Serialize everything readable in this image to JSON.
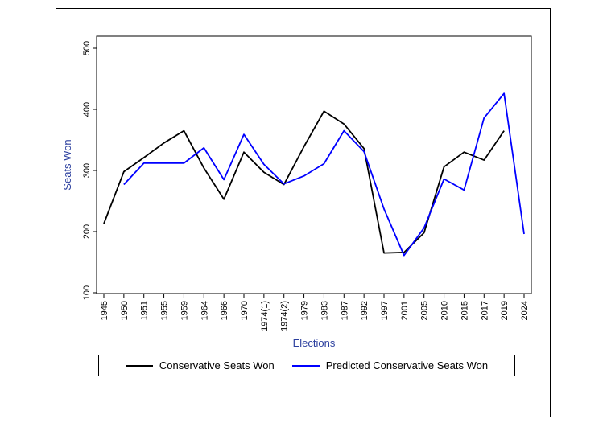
{
  "figure": {
    "background": "#ffffff",
    "border_color": "#000000"
  },
  "chart_data": {
    "type": "line",
    "title": "",
    "xlabel": "Elections",
    "ylabel": "Seats Won",
    "ylim": [
      100,
      500
    ],
    "yticks": [
      100,
      200,
      300,
      400,
      500
    ],
    "grid": false,
    "legend_position": "bottom",
    "axis_title_color": "#2b3f9e",
    "tick_label_color": "#000000",
    "categories": [
      "1945",
      "1950",
      "1951",
      "1955",
      "1959",
      "1964",
      "1966",
      "1970",
      "1974(1)",
      "1974(2)",
      "1979",
      "1983",
      "1987",
      "1992",
      "1997",
      "2001",
      "2005",
      "2010",
      "2015",
      "2017",
      "2019",
      "2024"
    ],
    "series": [
      {
        "name": "Conservative Seats Won",
        "color": "#000000",
        "values": [
          213,
          298,
          321,
          345,
          365,
          304,
          253,
          330,
          297,
          277,
          339,
          397,
          376,
          336,
          165,
          166,
          198,
          306,
          330,
          317,
          365,
          null
        ]
      },
      {
        "name": "Predicted Conservative Seats Won",
        "color": "#0000ff",
        "values": [
          null,
          277,
          312,
          312,
          312,
          337,
          285,
          359,
          310,
          278,
          291,
          311,
          365,
          331,
          237,
          161,
          206,
          286,
          268,
          386,
          426,
          196
        ]
      }
    ]
  }
}
